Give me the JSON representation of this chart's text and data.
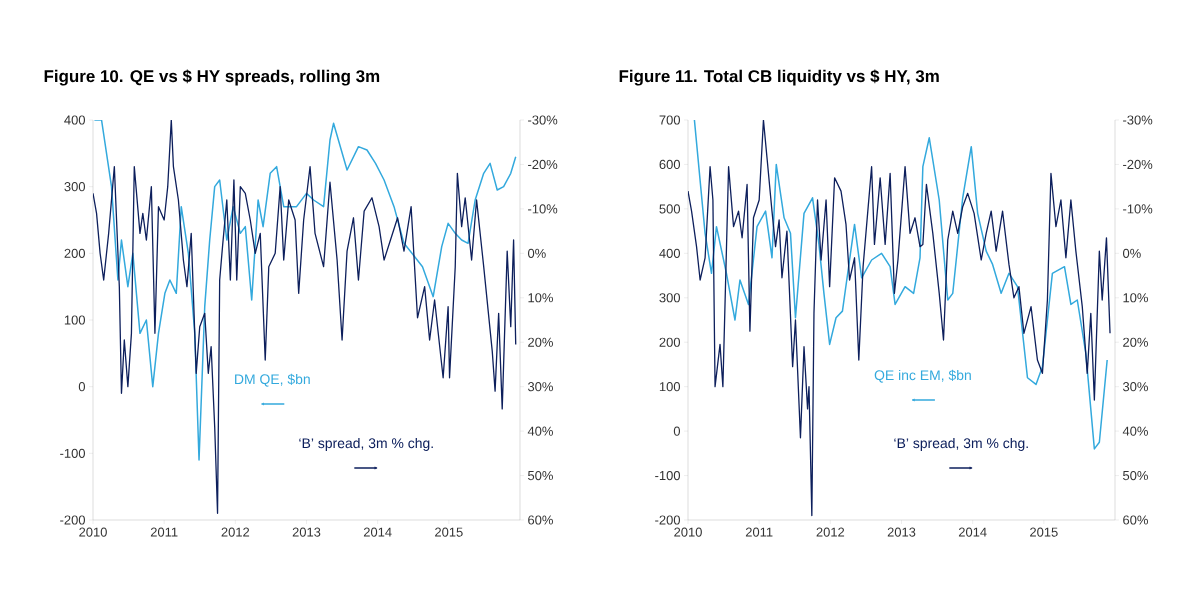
{
  "chart_data": [
    {
      "type": "line",
      "title": "Figure 10. QE vs $ HY spreads, rolling 3m",
      "xlim": [
        2010,
        2016
      ],
      "xticks": [
        2010,
        2011,
        2012,
        2013,
        2014,
        2015
      ],
      "ylim": [
        -200,
        400
      ],
      "yticks": [
        -200,
        -100,
        0,
        100,
        200,
        300,
        400
      ],
      "y2lim": [
        60,
        -30
      ],
      "y2ticks": [
        {
          "value": -30,
          "label": "-30%"
        },
        {
          "value": -20,
          "label": "-20%"
        },
        {
          "value": -10,
          "label": "-10%"
        },
        {
          "value": 0,
          "label": "0%"
        },
        {
          "value": 10,
          "label": "10%"
        },
        {
          "value": 20,
          "label": "20%"
        },
        {
          "value": 30,
          "label": "30%"
        },
        {
          "value": 40,
          "label": "40%"
        },
        {
          "value": 50,
          "label": "50%"
        },
        {
          "value": 60,
          "label": "60%"
        }
      ],
      "series": [
        {
          "name": "DM QE, $bn",
          "color": "#33a9dd",
          "x": [
            2010.02,
            2010.12,
            2010.26,
            2010.35,
            2010.4,
            2010.49,
            2010.56,
            2010.66,
            2010.75,
            2010.84,
            2010.92,
            2011.01,
            2011.08,
            2011.17,
            2011.24,
            2011.34,
            2011.43,
            2011.49,
            2011.57,
            2011.64,
            2011.71,
            2011.78,
            2011.88,
            2011.97,
            2012.07,
            2012.14,
            2012.23,
            2012.32,
            2012.39,
            2012.49,
            2012.58,
            2012.68,
            2012.86,
            2013.0,
            2013.1,
            2013.24,
            2013.33,
            2013.38,
            2013.57,
            2013.73,
            2013.85,
            2013.97,
            2014.09,
            2014.23,
            2014.37,
            2014.52,
            2014.63,
            2014.78,
            2014.9,
            2014.99,
            2015.09,
            2015.18,
            2015.27,
            2015.37,
            2015.49,
            2015.58,
            2015.68,
            2015.77,
            2015.87,
            2015.94
          ],
          "values": [
            400,
            400,
            300,
            160,
            220,
            150,
            200,
            80,
            100,
            0,
            80,
            140,
            160,
            140,
            270,
            200,
            80,
            -110,
            120,
            220,
            300,
            310,
            220,
            270,
            230,
            240,
            130,
            280,
            240,
            320,
            330,
            270,
            270,
            290,
            280,
            270,
            370,
            395,
            325,
            360,
            355,
            335,
            310,
            270,
            215,
            195,
            180,
            135,
            210,
            245,
            230,
            220,
            215,
            280,
            320,
            335,
            295,
            300,
            320,
            345
          ]
        },
        {
          "name": "‘B’ spread, 3m % chg.",
          "color": "#0d1f5c",
          "axis": "y2",
          "x": [
            2010.0,
            2010.05,
            2010.1,
            2010.15,
            2010.22,
            2010.3,
            2010.37,
            2010.4,
            2010.44,
            2010.49,
            2010.54,
            2010.58,
            2010.66,
            2010.7,
            2010.75,
            2010.82,
            2010.87,
            2010.92,
            2011.0,
            2011.05,
            2011.1,
            2011.13,
            2011.2,
            2011.27,
            2011.32,
            2011.38,
            2011.45,
            2011.5,
            2011.57,
            2011.62,
            2011.66,
            2011.71,
            2011.75,
            2011.78,
            2011.82,
            2011.88,
            2011.93,
            2011.98,
            2012.02,
            2012.07,
            2012.14,
            2012.21,
            2012.28,
            2012.35,
            2012.42,
            2012.47,
            2012.56,
            2012.63,
            2012.68,
            2012.75,
            2012.84,
            2012.89,
            2012.96,
            2013.05,
            2013.12,
            2013.24,
            2013.33,
            2013.43,
            2013.5,
            2013.57,
            2013.66,
            2013.73,
            2013.81,
            2013.92,
            2014.02,
            2014.09,
            2014.18,
            2014.28,
            2014.37,
            2014.47,
            2014.56,
            2014.66,
            2014.73,
            2014.8,
            2014.92,
            2014.99,
            2015.01,
            2015.09,
            2015.12,
            2015.18,
            2015.23,
            2015.32,
            2015.39,
            2015.49,
            2015.61,
            2015.65,
            2015.7,
            2015.75,
            2015.82,
            2015.87,
            2015.91,
            2015.94
          ],
          "values": [
            -13.5,
            -9,
            0,
            6,
            -4.5,
            -19.5,
            7.5,
            31.5,
            19.5,
            30,
            18,
            -19.5,
            -4.5,
            -9,
            -3,
            -15,
            18,
            -10.5,
            -7.5,
            -15,
            -30,
            -19.5,
            -12,
            1.5,
            7.5,
            -4.5,
            27,
            16.5,
            13.5,
            27,
            21,
            39,
            58.5,
            6,
            -1.5,
            -12,
            6,
            -16.5,
            6,
            -15,
            -13.5,
            -7.5,
            0,
            -4.5,
            24,
            3,
            0,
            -15,
            1.5,
            -12,
            -7.5,
            9,
            -7.5,
            -19.5,
            -4.5,
            3,
            -16,
            1.5,
            19.5,
            -0.5,
            -8,
            6,
            -9.5,
            -12.5,
            -6,
            1.5,
            -3,
            -8,
            -0.5,
            -10.5,
            14.5,
            7.5,
            19.5,
            10.5,
            28,
            12,
            28,
            3,
            -18,
            -6,
            -12.5,
            1.5,
            -12,
            3,
            22,
            31,
            13.5,
            35,
            -0.5,
            16.5,
            -3,
            20.5
          ]
        }
      ]
    },
    {
      "type": "line",
      "title": "Figure 11. Total CB liquidity vs $ HY, 3m",
      "xlim": [
        2010,
        2016
      ],
      "xticks": [
        2010,
        2011,
        2012,
        2013,
        2014,
        2015
      ],
      "ylim": [
        -200,
        700
      ],
      "yticks": [
        -200,
        -100,
        0,
        100,
        200,
        300,
        400,
        500,
        600,
        700
      ],
      "y2lim": [
        60,
        -30
      ],
      "y2ticks": [
        {
          "value": -30,
          "label": "-30%"
        },
        {
          "value": -20,
          "label": "-20%"
        },
        {
          "value": -10,
          "label": "-10%"
        },
        {
          "value": 0,
          "label": "0%"
        },
        {
          "value": 10,
          "label": "10%"
        },
        {
          "value": 20,
          "label": "20%"
        },
        {
          "value": 30,
          "label": "30%"
        },
        {
          "value": 40,
          "label": "40%"
        },
        {
          "value": 50,
          "label": "50%"
        },
        {
          "value": 60,
          "label": "60%"
        }
      ],
      "series": [
        {
          "name": "QE inc EM, $bn",
          "color": "#33a9dd",
          "x": [
            2010.09,
            2010.24,
            2010.33,
            2010.4,
            2010.54,
            2010.66,
            2010.73,
            2010.85,
            2010.97,
            2011.09,
            2011.18,
            2011.24,
            2011.35,
            2011.44,
            2011.51,
            2011.63,
            2011.75,
            2011.84,
            2011.91,
            2011.99,
            2012.08,
            2012.17,
            2012.27,
            2012.34,
            2012.44,
            2012.58,
            2012.72,
            2012.84,
            2012.91,
            2013.05,
            2013.17,
            2013.26,
            2013.3,
            2013.39,
            2013.53,
            2013.65,
            2013.72,
            2013.86,
            2013.98,
            2014.07,
            2014.19,
            2014.28,
            2014.4,
            2014.51,
            2014.63,
            2014.77,
            2014.89,
            2014.98,
            2015.12,
            2015.29,
            2015.38,
            2015.47,
            2015.59,
            2015.71,
            2015.78,
            2015.89
          ],
          "values": [
            700,
            445,
            355,
            460,
            355,
            250,
            340,
            285,
            460,
            495,
            390,
            600,
            480,
            445,
            255,
            490,
            525,
            420,
            310,
            195,
            255,
            270,
            385,
            465,
            345,
            385,
            400,
            370,
            285,
            325,
            310,
            390,
            595,
            660,
            520,
            295,
            310,
            525,
            640,
            490,
            405,
            375,
            310,
            355,
            325,
            120,
            105,
            145,
            355,
            370,
            285,
            295,
            175,
            -40,
            -25,
            160
          ]
        },
        {
          "name": "‘B’ spread, 3m % chg.",
          "color": "#0d1f5c",
          "axis": "y2",
          "x": [
            2010.0,
            2010.05,
            2010.12,
            2010.17,
            2010.24,
            2010.31,
            2010.35,
            2010.38,
            2010.45,
            2010.49,
            2010.57,
            2010.64,
            2010.71,
            2010.76,
            2010.83,
            2010.87,
            2010.92,
            2011.0,
            2011.06,
            2011.11,
            2011.18,
            2011.23,
            2011.28,
            2011.32,
            2011.39,
            2011.47,
            2011.51,
            2011.58,
            2011.63,
            2011.68,
            2011.7,
            2011.74,
            2011.77,
            2011.82,
            2011.87,
            2011.94,
            2011.99,
            2012.06,
            2012.15,
            2012.22,
            2012.27,
            2012.34,
            2012.4,
            2012.46,
            2012.58,
            2012.62,
            2012.7,
            2012.77,
            2012.84,
            2012.9,
            2012.95,
            2013.05,
            2013.12,
            2013.19,
            2013.26,
            2013.3,
            2013.35,
            2013.44,
            2013.53,
            2013.59,
            2013.65,
            2013.72,
            2013.79,
            2013.86,
            2013.93,
            2014.02,
            2014.12,
            2014.19,
            2014.26,
            2014.33,
            2014.42,
            2014.51,
            2014.58,
            2014.65,
            2014.72,
            2014.82,
            2014.91,
            2014.98,
            2015.05,
            2015.1,
            2015.17,
            2015.24,
            2015.31,
            2015.38,
            2015.45,
            2015.54,
            2015.61,
            2015.66,
            2015.71,
            2015.78,
            2015.82,
            2015.88,
            2015.93
          ],
          "values": [
            -14,
            -9.5,
            -1.5,
            6,
            1,
            -19.5,
            -12,
            30,
            20.5,
            30,
            -19.5,
            -6,
            -9.5,
            -3.5,
            -15.5,
            17.5,
            -8,
            -12,
            -30,
            -21.5,
            -9.5,
            -1.5,
            -7.5,
            5.5,
            -5,
            25.5,
            15,
            41.5,
            21,
            35,
            30,
            59,
            13.5,
            -12,
            1.5,
            -12,
            7.5,
            -17,
            -14,
            -6.5,
            6,
            1,
            24,
            3,
            -19.5,
            -2,
            -17,
            -2,
            -18,
            9,
            1.5,
            -19.5,
            -4.5,
            -8,
            -1.5,
            -2,
            -15.5,
            -4.5,
            9,
            19.5,
            -3,
            -9.5,
            -4.5,
            -10.5,
            -13.5,
            -9,
            1.5,
            -4.5,
            -9.5,
            -0.5,
            -9.5,
            2.5,
            10,
            7.5,
            18,
            12,
            24,
            27,
            10.5,
            -18,
            -6,
            -12,
            1,
            -12,
            -0.5,
            12,
            27,
            13.5,
            33,
            -0.5,
            10.5,
            -3.5,
            18
          ]
        }
      ]
    }
  ]
}
